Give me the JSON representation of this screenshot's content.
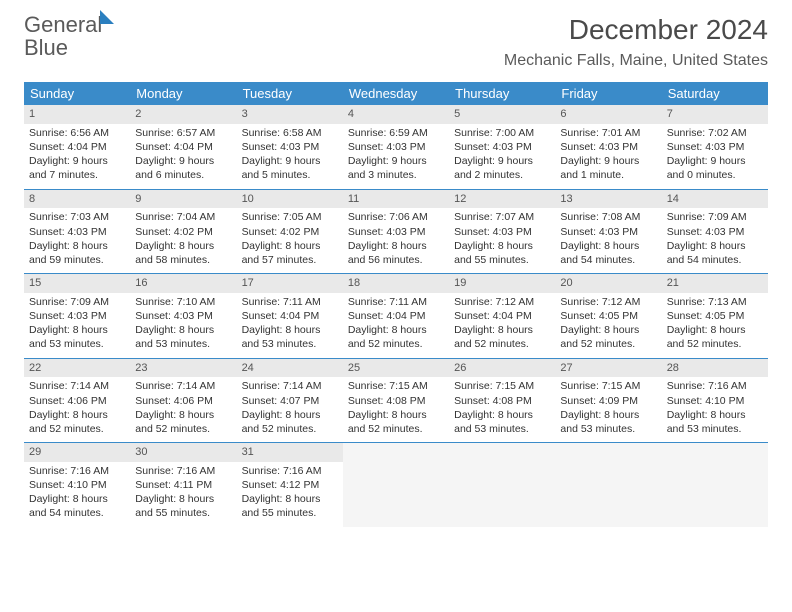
{
  "logo": {
    "text_general": "General",
    "text_blue": "Blue"
  },
  "title": "December 2024",
  "location": "Mechanic Falls, Maine, United States",
  "colors": {
    "header_bg": "#3a8bc9",
    "header_text": "#ffffff",
    "brand_blue": "#2b7fbf",
    "text": "#333333",
    "daynum_bg": "#e9e9e9",
    "empty_bg": "#f5f5f5"
  },
  "day_headers": [
    "Sunday",
    "Monday",
    "Tuesday",
    "Wednesday",
    "Thursday",
    "Friday",
    "Saturday"
  ],
  "weeks": [
    [
      {
        "n": "1",
        "sr": "Sunrise: 6:56 AM",
        "ss": "Sunset: 4:04 PM",
        "dl": "Daylight: 9 hours and 7 minutes."
      },
      {
        "n": "2",
        "sr": "Sunrise: 6:57 AM",
        "ss": "Sunset: 4:04 PM",
        "dl": "Daylight: 9 hours and 6 minutes."
      },
      {
        "n": "3",
        "sr": "Sunrise: 6:58 AM",
        "ss": "Sunset: 4:03 PM",
        "dl": "Daylight: 9 hours and 5 minutes."
      },
      {
        "n": "4",
        "sr": "Sunrise: 6:59 AM",
        "ss": "Sunset: 4:03 PM",
        "dl": "Daylight: 9 hours and 3 minutes."
      },
      {
        "n": "5",
        "sr": "Sunrise: 7:00 AM",
        "ss": "Sunset: 4:03 PM",
        "dl": "Daylight: 9 hours and 2 minutes."
      },
      {
        "n": "6",
        "sr": "Sunrise: 7:01 AM",
        "ss": "Sunset: 4:03 PM",
        "dl": "Daylight: 9 hours and 1 minute."
      },
      {
        "n": "7",
        "sr": "Sunrise: 7:02 AM",
        "ss": "Sunset: 4:03 PM",
        "dl": "Daylight: 9 hours and 0 minutes."
      }
    ],
    [
      {
        "n": "8",
        "sr": "Sunrise: 7:03 AM",
        "ss": "Sunset: 4:03 PM",
        "dl": "Daylight: 8 hours and 59 minutes."
      },
      {
        "n": "9",
        "sr": "Sunrise: 7:04 AM",
        "ss": "Sunset: 4:02 PM",
        "dl": "Daylight: 8 hours and 58 minutes."
      },
      {
        "n": "10",
        "sr": "Sunrise: 7:05 AM",
        "ss": "Sunset: 4:02 PM",
        "dl": "Daylight: 8 hours and 57 minutes."
      },
      {
        "n": "11",
        "sr": "Sunrise: 7:06 AM",
        "ss": "Sunset: 4:03 PM",
        "dl": "Daylight: 8 hours and 56 minutes."
      },
      {
        "n": "12",
        "sr": "Sunrise: 7:07 AM",
        "ss": "Sunset: 4:03 PM",
        "dl": "Daylight: 8 hours and 55 minutes."
      },
      {
        "n": "13",
        "sr": "Sunrise: 7:08 AM",
        "ss": "Sunset: 4:03 PM",
        "dl": "Daylight: 8 hours and 54 minutes."
      },
      {
        "n": "14",
        "sr": "Sunrise: 7:09 AM",
        "ss": "Sunset: 4:03 PM",
        "dl": "Daylight: 8 hours and 54 minutes."
      }
    ],
    [
      {
        "n": "15",
        "sr": "Sunrise: 7:09 AM",
        "ss": "Sunset: 4:03 PM",
        "dl": "Daylight: 8 hours and 53 minutes."
      },
      {
        "n": "16",
        "sr": "Sunrise: 7:10 AM",
        "ss": "Sunset: 4:03 PM",
        "dl": "Daylight: 8 hours and 53 minutes."
      },
      {
        "n": "17",
        "sr": "Sunrise: 7:11 AM",
        "ss": "Sunset: 4:04 PM",
        "dl": "Daylight: 8 hours and 53 minutes."
      },
      {
        "n": "18",
        "sr": "Sunrise: 7:11 AM",
        "ss": "Sunset: 4:04 PM",
        "dl": "Daylight: 8 hours and 52 minutes."
      },
      {
        "n": "19",
        "sr": "Sunrise: 7:12 AM",
        "ss": "Sunset: 4:04 PM",
        "dl": "Daylight: 8 hours and 52 minutes."
      },
      {
        "n": "20",
        "sr": "Sunrise: 7:12 AM",
        "ss": "Sunset: 4:05 PM",
        "dl": "Daylight: 8 hours and 52 minutes."
      },
      {
        "n": "21",
        "sr": "Sunrise: 7:13 AM",
        "ss": "Sunset: 4:05 PM",
        "dl": "Daylight: 8 hours and 52 minutes."
      }
    ],
    [
      {
        "n": "22",
        "sr": "Sunrise: 7:14 AM",
        "ss": "Sunset: 4:06 PM",
        "dl": "Daylight: 8 hours and 52 minutes."
      },
      {
        "n": "23",
        "sr": "Sunrise: 7:14 AM",
        "ss": "Sunset: 4:06 PM",
        "dl": "Daylight: 8 hours and 52 minutes."
      },
      {
        "n": "24",
        "sr": "Sunrise: 7:14 AM",
        "ss": "Sunset: 4:07 PM",
        "dl": "Daylight: 8 hours and 52 minutes."
      },
      {
        "n": "25",
        "sr": "Sunrise: 7:15 AM",
        "ss": "Sunset: 4:08 PM",
        "dl": "Daylight: 8 hours and 52 minutes."
      },
      {
        "n": "26",
        "sr": "Sunrise: 7:15 AM",
        "ss": "Sunset: 4:08 PM",
        "dl": "Daylight: 8 hours and 53 minutes."
      },
      {
        "n": "27",
        "sr": "Sunrise: 7:15 AM",
        "ss": "Sunset: 4:09 PM",
        "dl": "Daylight: 8 hours and 53 minutes."
      },
      {
        "n": "28",
        "sr": "Sunrise: 7:16 AM",
        "ss": "Sunset: 4:10 PM",
        "dl": "Daylight: 8 hours and 53 minutes."
      }
    ],
    [
      {
        "n": "29",
        "sr": "Sunrise: 7:16 AM",
        "ss": "Sunset: 4:10 PM",
        "dl": "Daylight: 8 hours and 54 minutes."
      },
      {
        "n": "30",
        "sr": "Sunrise: 7:16 AM",
        "ss": "Sunset: 4:11 PM",
        "dl": "Daylight: 8 hours and 55 minutes."
      },
      {
        "n": "31",
        "sr": "Sunrise: 7:16 AM",
        "ss": "Sunset: 4:12 PM",
        "dl": "Daylight: 8 hours and 55 minutes."
      },
      null,
      null,
      null,
      null
    ]
  ]
}
